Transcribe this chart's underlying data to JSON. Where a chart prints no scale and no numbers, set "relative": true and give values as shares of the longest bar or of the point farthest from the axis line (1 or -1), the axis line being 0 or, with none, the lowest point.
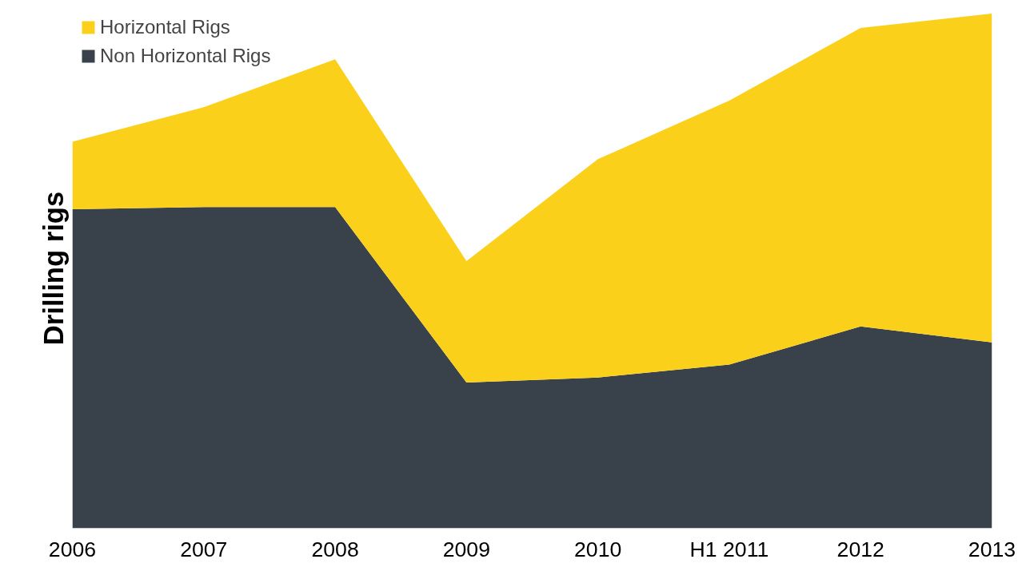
{
  "chart_data": {
    "type": "area",
    "stacked": true,
    "relative": true,
    "ylabel": "Drilling rigs",
    "categories": [
      "2006",
      "2007",
      "2008",
      "2009",
      "2010",
      "H1 2011",
      "2012",
      "2013"
    ],
    "series": [
      {
        "name": "Non Horizontal Rigs",
        "color": "#39424a",
        "values": [
          0.62,
          0.624,
          0.624,
          0.283,
          0.293,
          0.318,
          0.392,
          0.361
        ]
      },
      {
        "name": "Horizontal Rigs",
        "color": "#fbd01a",
        "values": [
          0.131,
          0.194,
          0.287,
          0.236,
          0.424,
          0.513,
          0.58,
          0.639
        ]
      }
    ],
    "legend": "top left"
  }
}
